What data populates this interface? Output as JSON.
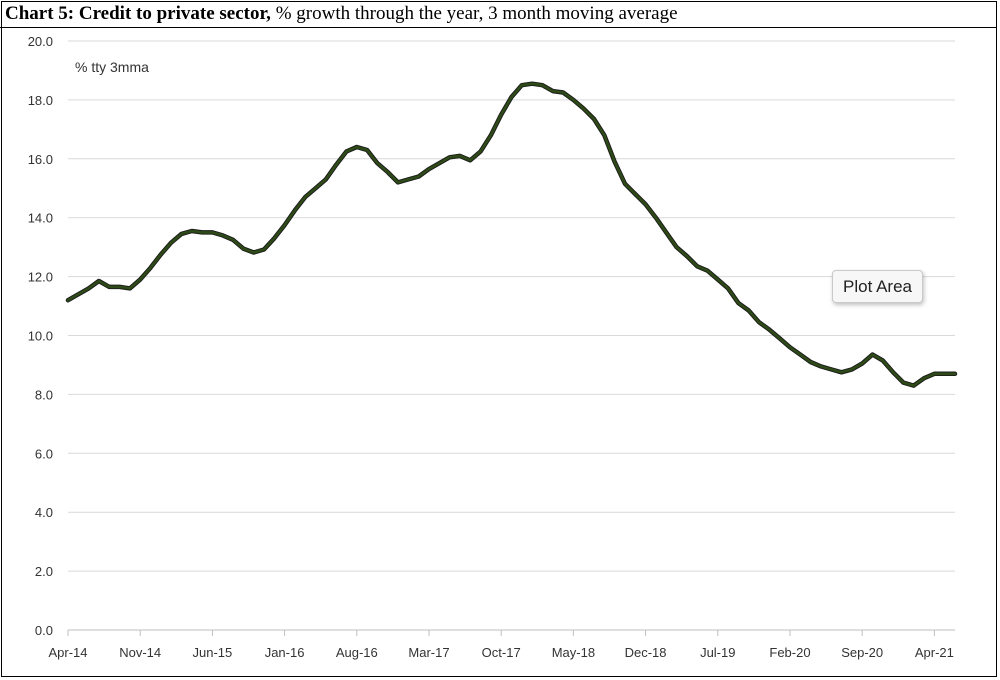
{
  "title": {
    "bold": "Chart 5: Credit to private sector,",
    "rest": " % growth through the year, 3 month moving average"
  },
  "tooltip": {
    "label": "Plot Area"
  },
  "colors": {
    "line": "#2d4a17",
    "grid": "#d9d9d9",
    "axis_text": "#333333"
  },
  "chart_data": {
    "type": "line",
    "title": "Chart 5: Credit to private sector, % growth through the year, 3 month moving average",
    "ylabel": "% tty 3mma",
    "xlabel": "",
    "ylim": [
      0,
      20
    ],
    "yticks": [
      "0.0",
      "2.0",
      "4.0",
      "6.0",
      "8.0",
      "10.0",
      "12.0",
      "14.0",
      "16.0",
      "18.0",
      "20.0"
    ],
    "xtick_labels": [
      "Apr-14",
      "Nov-14",
      "Jun-15",
      "Jan-16",
      "Aug-16",
      "Mar-17",
      "Oct-17",
      "May-18",
      "Dec-18",
      "Jul-19",
      "Feb-20",
      "Sep-20",
      "Apr-21"
    ],
    "xtick_every": 7,
    "grid": true,
    "legend": "none",
    "series": [
      {
        "values": [
          11.2,
          11.4,
          11.6,
          11.85,
          11.65,
          11.65,
          11.6,
          11.9,
          12.3,
          12.75,
          13.15,
          13.45,
          13.55,
          13.5,
          13.5,
          13.4,
          13.25,
          12.95,
          12.82,
          12.92,
          13.3,
          13.75,
          14.25,
          14.7,
          15.0,
          15.3,
          15.8,
          16.25,
          16.4,
          16.3,
          15.85,
          15.55,
          15.2,
          15.3,
          15.4,
          15.65,
          15.85,
          16.05,
          16.1,
          15.95,
          16.25,
          16.8,
          17.5,
          18.1,
          18.5,
          18.55,
          18.5,
          18.3,
          18.25,
          18.0,
          17.7,
          17.35,
          16.8,
          15.9,
          15.15,
          14.8,
          14.45,
          14.0,
          13.5,
          13.0,
          12.7,
          12.35,
          12.2,
          11.9,
          11.6,
          11.1,
          10.85,
          10.45,
          10.2,
          9.9,
          9.6,
          9.35,
          9.1,
          8.95,
          8.85,
          8.75,
          8.85,
          9.05,
          9.35,
          9.15,
          8.75,
          8.4,
          8.3,
          8.55,
          8.7,
          8.7,
          8.7
        ]
      }
    ]
  }
}
